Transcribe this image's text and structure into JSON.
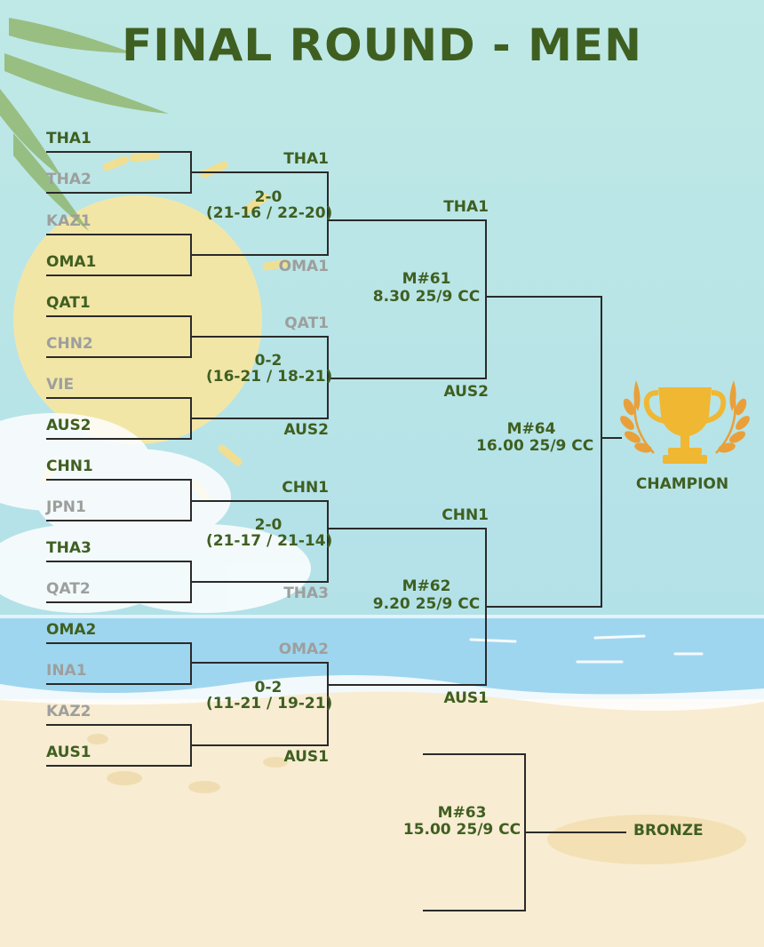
{
  "title": "FINAL ROUND - MEN",
  "round1_teams": [
    "THA1",
    "THA2",
    "KAZ1",
    "OMA1",
    "QAT1",
    "CHN2",
    "VIE",
    "AUS2",
    "CHN1",
    "JPN1",
    "THA3",
    "QAT2",
    "OMA2",
    "INA1",
    "KAZ2",
    "AUS1"
  ],
  "round1_winner_flags": [
    true,
    false,
    false,
    true,
    true,
    false,
    false,
    true,
    true,
    false,
    true,
    false,
    true,
    false,
    false,
    true
  ],
  "quarterfinals": [
    {
      "top": "THA1",
      "bottom": "OMA1",
      "score": "2-0",
      "sets": "(21-16 / 22-20)"
    },
    {
      "top": "QAT1",
      "bottom": "AUS2",
      "score": "0-2",
      "sets": "(16-21 / 18-21)"
    },
    {
      "top": "CHN1",
      "bottom": "THA3",
      "score": "2-0",
      "sets": "(21-17 / 21-14)"
    },
    {
      "top": "OMA2",
      "bottom": "AUS1",
      "score": "0-2",
      "sets": "(11-21 / 19-21)"
    }
  ],
  "semifinals": [
    {
      "top": "THA1",
      "bottom": "AUS2",
      "match": "M#61",
      "when": "8.30 25/9 CC"
    },
    {
      "top": "CHN1",
      "bottom": "AUS1",
      "match": "M#62",
      "when": "9.20 25/9 CC"
    }
  ],
  "final": {
    "match": "M#64",
    "when": "16.00 25/9 CC",
    "label": "CHAMPION",
    "trophy_icon": "trophy-icon"
  },
  "bronze": {
    "match": "M#63",
    "when": "15.00 25/9 CC",
    "label": "BRONZE"
  },
  "colors": {
    "winner": "#3f5f21",
    "loser": "#9d9f9d",
    "line": "#2a2a2a",
    "sky": "#b9e6e6",
    "sea": "#9fd6ef",
    "sand": "#f8ecd2",
    "sun": "#f8e6a0",
    "trophy": "#f0b733",
    "laurel": "#e9a03a"
  }
}
